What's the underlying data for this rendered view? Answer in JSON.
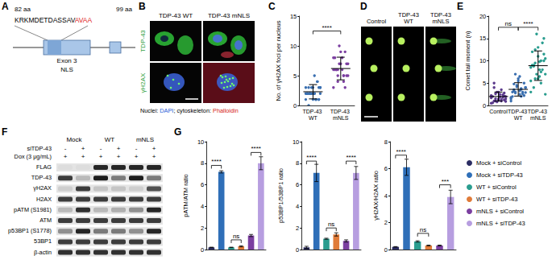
{
  "panel_labels": [
    "A",
    "B",
    "C",
    "D",
    "E",
    "F",
    "G"
  ],
  "nls_diagram": {
    "start_label": "82 aa",
    "end_label": "99 aa",
    "sequence": [
      {
        "text": "KRKMDETDASSAV",
        "color": "#000000"
      },
      {
        "text": "AVAA",
        "color": "#e02020"
      }
    ],
    "exon": "Exon 3",
    "region": "NLS"
  },
  "microscopy": {
    "columns": [
      "TDP-43 WT",
      "TDP-43 mNLS"
    ],
    "rows": [
      {
        "text": "TDP-43",
        "color": "#2e9e3a"
      },
      {
        "text": "γH2AX",
        "color": "#2e9e3a"
      }
    ],
    "caption": [
      {
        "text": "Nuclei: ",
        "color": "#000000"
      },
      {
        "text": "DAPI",
        "color": "#2a5bd7"
      },
      {
        "text": "; cytoskeleton: ",
        "color": "#000000"
      },
      {
        "text": "Phalloidin",
        "color": "#d62020"
      }
    ]
  },
  "comet_images": {
    "columns": [
      "Control",
      "TDP-43 WT",
      "TDP-43 mNLS"
    ]
  },
  "western_blot": {
    "groups": [
      "Mock",
      "WT",
      "mNLS"
    ],
    "conditions": [
      {
        "label": "siTDP-43",
        "marks": [
          "-",
          "+",
          "-",
          "+",
          "-",
          "+"
        ]
      },
      {
        "label": "Dox (3 μg/mL)",
        "marks": [
          "+",
          "+",
          "+",
          "+",
          "+",
          "+"
        ]
      }
    ],
    "rows": [
      "FLAG",
      "TDP-43",
      "γH2AX",
      "H2AX",
      "pATM (S1981)",
      "ATM",
      "p53BP1 (S1778)",
      "53BP1",
      "β-actin"
    ]
  },
  "chart_data": [
    {
      "type": "dot_plot",
      "ylabel": "No. of γH2AX foci per nucleus",
      "categories": [
        "TDP-43 WT",
        "TDP-43 mNLS"
      ],
      "points": [
        [
          1,
          1,
          2,
          2,
          2,
          3,
          3,
          1,
          2,
          4,
          3,
          2,
          1,
          2,
          3,
          5,
          2,
          1,
          3,
          2,
          4,
          2,
          3,
          1,
          2,
          3,
          2,
          0,
          1,
          2
        ],
        [
          3,
          4,
          5,
          5,
          6,
          6,
          7,
          7,
          8,
          9,
          10,
          6,
          5,
          4,
          7,
          8,
          6,
          5,
          9,
          6,
          3,
          7,
          8,
          5,
          6
        ]
      ],
      "mean": [
        2.3,
        6.2
      ],
      "sd": [
        1.2,
        1.9
      ],
      "colors": [
        "#3a6fb0",
        "#7b3fa0"
      ],
      "ylim": [
        0,
        15
      ],
      "yticks": [
        0,
        5,
        10,
        15
      ],
      "grid": false,
      "brackets": [
        {
          "from": 0,
          "to": 1,
          "y": 12.5,
          "label": "****"
        }
      ]
    },
    {
      "type": "dot_plot",
      "ylabel": "Comet tail moment (n)",
      "categories": [
        "Control",
        "TDP-43 WT",
        "TDP-43 mNLS"
      ],
      "points": [
        [
          0.5,
          1,
          1.5,
          2,
          2.5,
          1,
          1.2,
          3,
          2,
          1.8,
          0.8,
          2.2,
          3.5,
          1,
          1.5,
          2,
          4,
          2.8,
          1.1,
          0.6,
          2.4,
          3,
          1.7,
          1.3,
          2.6,
          0.9,
          1.9,
          5,
          2.1,
          1.4
        ],
        [
          1,
          2,
          3,
          4,
          2.5,
          3.5,
          5,
          6,
          2,
          3,
          4.5,
          1.5,
          3.8,
          2.8,
          4,
          6.5,
          3.2,
          2.2,
          5.5,
          3,
          2.6,
          4.2,
          1.8,
          3.6,
          7,
          2.9,
          3.3,
          4.8
        ],
        [
          3,
          5,
          6,
          7,
          8,
          9,
          10,
          11,
          12,
          14,
          16,
          8.5,
          7.5,
          9.5,
          10.5,
          6.5,
          4,
          11.5,
          13,
          9,
          8,
          7,
          5.5,
          10,
          12.5,
          2.5,
          9.8,
          8.8,
          15,
          6
        ]
      ],
      "mean": [
        2,
        3.6,
        8.9
      ],
      "sd": [
        1,
        1.5,
        3.3
      ],
      "colors": [
        "#5b3a8c",
        "#3a6fb0",
        "#2a9d8f"
      ],
      "ylim": [
        0,
        20
      ],
      "yticks": [
        0,
        5,
        10,
        15,
        20
      ],
      "grid": false,
      "brackets": [
        {
          "from": 0,
          "to": 1,
          "y": 17.5,
          "label": "ns"
        },
        {
          "from": 1,
          "to": 2,
          "y": 17.5,
          "label": "****"
        }
      ]
    },
    {
      "type": "bar",
      "ylabel": "pATM/ATM ratio",
      "categories": [
        "Mock + siControl",
        "Mock + siTDP-43",
        "WT + siControl",
        "WT + siTDP-43",
        "mNLS + siControl",
        "mNLS + siTDP-43"
      ],
      "values": [
        0.2,
        7.2,
        0.2,
        0.3,
        1.3,
        8.0
      ],
      "errors": [
        0.02,
        0.1,
        0.02,
        0.05,
        0.1,
        0.6
      ],
      "colors": [
        "#2b2d63",
        "#2f6fb8",
        "#2a9d8f",
        "#e07b39",
        "#7b3fa0",
        "#b79ee0"
      ],
      "ylim": [
        0,
        10
      ],
      "yticks": [
        0,
        2,
        4,
        6,
        8,
        10
      ],
      "grid": false,
      "tick_labels": "y",
      "brackets": [
        {
          "from": 0,
          "to": 1,
          "y": 7.8,
          "label": "****"
        },
        {
          "from": 2,
          "to": 3,
          "y": 0.9,
          "label": "ns"
        },
        {
          "from": 4,
          "to": 5,
          "y": 9.0,
          "label": "****"
        }
      ]
    },
    {
      "type": "bar",
      "ylabel": "p53BP1/53BP1 ratio",
      "categories": [
        "Mock + siControl",
        "Mock + siTDP-43",
        "WT + siControl",
        "WT + siTDP-43",
        "mNLS + siControl",
        "mNLS + siTDP-43"
      ],
      "values": [
        0.2,
        7.1,
        1.0,
        1.4,
        0.8,
        7.1
      ],
      "errors": [
        0.1,
        0.8,
        0.05,
        0.15,
        0.1,
        0.6
      ],
      "colors": [
        "#2b2d63",
        "#2f6fb8",
        "#2a9d8f",
        "#e07b39",
        "#7b3fa0",
        "#b79ee0"
      ],
      "ylim": [
        0,
        10
      ],
      "yticks": [
        0,
        2,
        4,
        6,
        8,
        10
      ],
      "grid": false,
      "tick_labels": "y",
      "brackets": [
        {
          "from": 0,
          "to": 1,
          "y": 8.2,
          "label": "****"
        },
        {
          "from": 2,
          "to": 3,
          "y": 2.0,
          "label": "ns"
        },
        {
          "from": 4,
          "to": 5,
          "y": 8.2,
          "label": "****"
        }
      ]
    },
    {
      "type": "bar",
      "ylabel": "γH2AX/H2AX ratio",
      "categories": [
        "Mock + siControl",
        "Mock + siTDP-43",
        "WT + siControl",
        "WT + siTDP-43",
        "mNLS + siControl",
        "mNLS + siTDP-43"
      ],
      "values": [
        0.2,
        6.1,
        0.6,
        0.3,
        0.3,
        3.9
      ],
      "errors": [
        0.02,
        0.6,
        0.05,
        0.03,
        0.03,
        0.5
      ],
      "colors": [
        "#2b2d63",
        "#2f6fb8",
        "#2a9d8f",
        "#e07b39",
        "#7b3fa0",
        "#b79ee0"
      ],
      "ylim": [
        0,
        8
      ],
      "yticks": [
        0,
        2,
        4,
        6,
        8
      ],
      "grid": false,
      "tick_labels": "y",
      "legend": "right",
      "brackets": [
        {
          "from": 0,
          "to": 1,
          "y": 7.0,
          "label": "****"
        },
        {
          "from": 2,
          "to": 3,
          "y": 1.2,
          "label": "ns"
        },
        {
          "from": 4,
          "to": 5,
          "y": 4.8,
          "label": "***"
        }
      ]
    }
  ]
}
